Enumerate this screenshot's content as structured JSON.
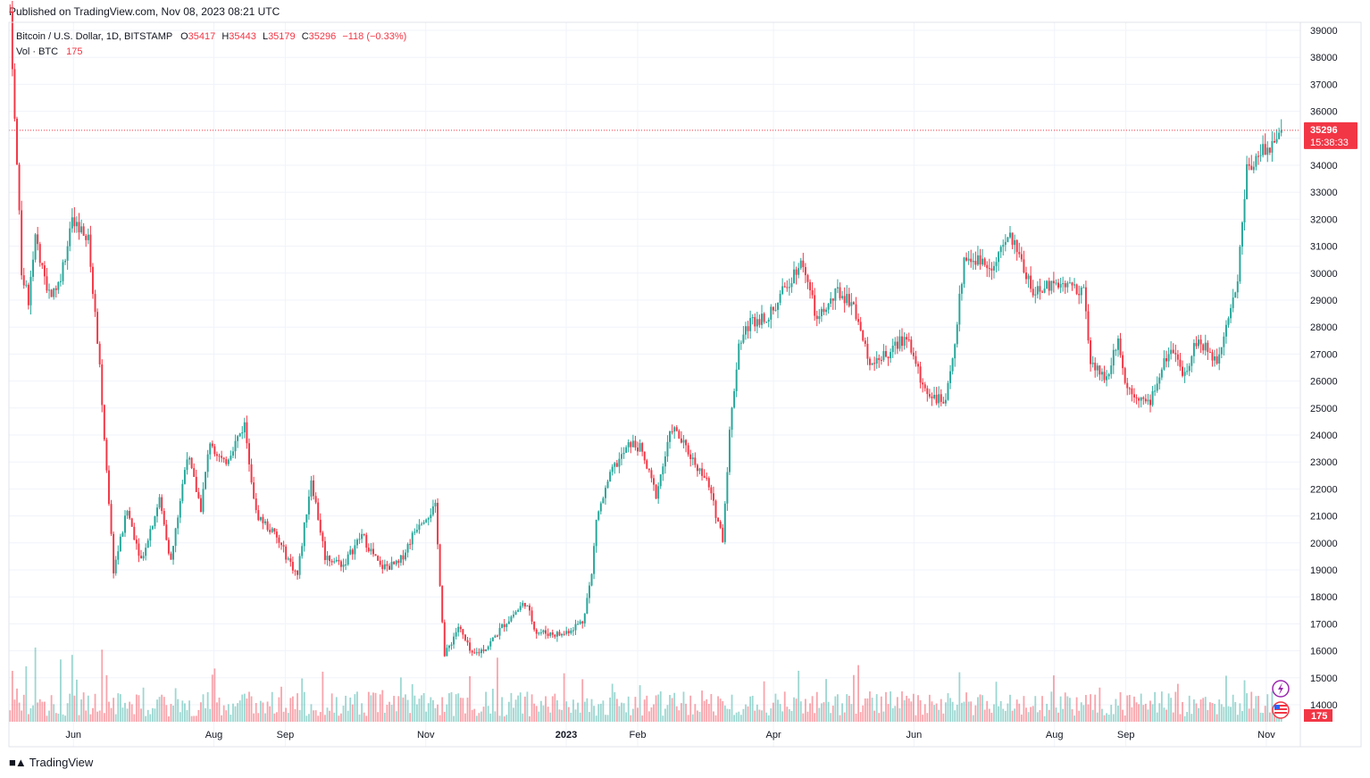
{
  "header": {
    "published": "Published on TradingView.com, Nov 08, 2023 08:21 UTC"
  },
  "legend": {
    "symbol": "Bitcoin / U.S. Dollar, 1D, BITSTAMP",
    "o_label": "O",
    "o_value": "35417",
    "h_label": "H",
    "h_value": "35443",
    "l_label": "L",
    "l_value": "35179",
    "c_label": "C",
    "c_value": "35296",
    "change": "−118 (−0.33%)",
    "vol_label": "Vol · BTC",
    "vol_value": "175"
  },
  "price_tag": {
    "price": "35296",
    "countdown": "15:38:33"
  },
  "volume_tag": "175",
  "footer": {
    "brand": "TradingView"
  },
  "colors": {
    "up": "#26a69a",
    "down": "#f23645",
    "grid": "#f0f3fa",
    "text": "#131722"
  },
  "icons": {
    "logo": "tradingview-logo-icon",
    "flash": "lightning-icon",
    "flag": "us-flag-icon"
  },
  "chart_data": {
    "type": "candlestick",
    "symbol": "BTCUSD",
    "exchange": "BITSTAMP",
    "interval": "1D",
    "ylim": [
      13000,
      39500
    ],
    "y_ticks": [
      "39000",
      "38000",
      "37000",
      "36000",
      "35000",
      "34000",
      "33000",
      "32000",
      "31000",
      "30000",
      "29000",
      "28000",
      "27000",
      "26000",
      "25000",
      "24000",
      "23000",
      "22000",
      "21000",
      "20000",
      "19000",
      "18000",
      "17000",
      "16000",
      "15000",
      "14000"
    ],
    "x_ticks": [
      {
        "label": "Jun",
        "date": "2022-06-01"
      },
      {
        "label": "Aug",
        "date": "2022-08-01"
      },
      {
        "label": "Sep",
        "date": "2022-09-01"
      },
      {
        "label": "Nov",
        "date": "2022-11-01"
      },
      {
        "label": "2023",
        "date": "2023-01-01"
      },
      {
        "label": "Feb",
        "date": "2023-02-01"
      },
      {
        "label": "Apr",
        "date": "2023-04-01"
      },
      {
        "label": "Jun",
        "date": "2023-06-01"
      },
      {
        "label": "Aug",
        "date": "2023-08-01"
      },
      {
        "label": "Sep",
        "date": "2023-09-01"
      },
      {
        "label": "Nov",
        "date": "2023-11-01"
      }
    ],
    "start_date": "2022-05-04",
    "end_date": "2023-11-08",
    "close_series": [
      {
        "date": "2022-05-04",
        "close": 39700
      },
      {
        "date": "2022-05-06",
        "close": 36000
      },
      {
        "date": "2022-05-09",
        "close": 30100
      },
      {
        "date": "2022-05-12",
        "close": 29000
      },
      {
        "date": "2022-05-15",
        "close": 31300
      },
      {
        "date": "2022-05-20",
        "close": 29200
      },
      {
        "date": "2022-05-25",
        "close": 29600
      },
      {
        "date": "2022-05-31",
        "close": 31800
      },
      {
        "date": "2022-06-07",
        "close": 31200
      },
      {
        "date": "2022-06-12",
        "close": 26600
      },
      {
        "date": "2022-06-15",
        "close": 22500
      },
      {
        "date": "2022-06-18",
        "close": 19000
      },
      {
        "date": "2022-06-24",
        "close": 21200
      },
      {
        "date": "2022-06-30",
        "close": 19400
      },
      {
        "date": "2022-07-08",
        "close": 21600
      },
      {
        "date": "2022-07-13",
        "close": 19300
      },
      {
        "date": "2022-07-20",
        "close": 23300
      },
      {
        "date": "2022-07-26",
        "close": 21300
      },
      {
        "date": "2022-07-30",
        "close": 23800
      },
      {
        "date": "2022-08-05",
        "close": 22900
      },
      {
        "date": "2022-08-14",
        "close": 24400
      },
      {
        "date": "2022-08-19",
        "close": 21100
      },
      {
        "date": "2022-08-27",
        "close": 20300
      },
      {
        "date": "2022-09-06",
        "close": 18800
      },
      {
        "date": "2022-09-12",
        "close": 22400
      },
      {
        "date": "2022-09-18",
        "close": 19500
      },
      {
        "date": "2022-09-26",
        "close": 19200
      },
      {
        "date": "2022-10-04",
        "close": 20300
      },
      {
        "date": "2022-10-12",
        "close": 19100
      },
      {
        "date": "2022-10-20",
        "close": 19200
      },
      {
        "date": "2022-10-29",
        "close": 20800
      },
      {
        "date": "2022-11-05",
        "close": 21300
      },
      {
        "date": "2022-11-09",
        "close": 15800
      },
      {
        "date": "2022-11-15",
        "close": 16900
      },
      {
        "date": "2022-11-21",
        "close": 15800
      },
      {
        "date": "2022-11-28",
        "close": 16200
      },
      {
        "date": "2022-12-05",
        "close": 17000
      },
      {
        "date": "2022-12-14",
        "close": 17800
      },
      {
        "date": "2022-12-19",
        "close": 16700
      },
      {
        "date": "2022-12-30",
        "close": 16600
      },
      {
        "date": "2023-01-08",
        "close": 17100
      },
      {
        "date": "2023-01-12",
        "close": 18800
      },
      {
        "date": "2023-01-14",
        "close": 20900
      },
      {
        "date": "2023-01-21",
        "close": 22700
      },
      {
        "date": "2023-01-29",
        "close": 23700
      },
      {
        "date": "2023-02-02",
        "close": 23500
      },
      {
        "date": "2023-02-09",
        "close": 21800
      },
      {
        "date": "2023-02-16",
        "close": 24300
      },
      {
        "date": "2023-02-25",
        "close": 23100
      },
      {
        "date": "2023-03-03",
        "close": 22300
      },
      {
        "date": "2023-03-10",
        "close": 20200
      },
      {
        "date": "2023-03-13",
        "close": 24100
      },
      {
        "date": "2023-03-17",
        "close": 27400
      },
      {
        "date": "2023-03-22",
        "close": 28200
      },
      {
        "date": "2023-03-31",
        "close": 28500
      },
      {
        "date": "2023-04-11",
        "close": 30200
      },
      {
        "date": "2023-04-14",
        "close": 30400
      },
      {
        "date": "2023-04-20",
        "close": 28200
      },
      {
        "date": "2023-04-29",
        "close": 29300
      },
      {
        "date": "2023-05-06",
        "close": 28900
      },
      {
        "date": "2023-05-12",
        "close": 26800
      },
      {
        "date": "2023-05-20",
        "close": 26900
      },
      {
        "date": "2023-05-29",
        "close": 27700
      },
      {
        "date": "2023-06-05",
        "close": 25800
      },
      {
        "date": "2023-06-15",
        "close": 25100
      },
      {
        "date": "2023-06-20",
        "close": 28200
      },
      {
        "date": "2023-06-23",
        "close": 30600
      },
      {
        "date": "2023-07-06",
        "close": 30300
      },
      {
        "date": "2023-07-13",
        "close": 31400
      },
      {
        "date": "2023-07-24",
        "close": 29200
      },
      {
        "date": "2023-08-01",
        "close": 29700
      },
      {
        "date": "2023-08-14",
        "close": 29400
      },
      {
        "date": "2023-08-17",
        "close": 26600
      },
      {
        "date": "2023-08-24",
        "close": 26100
      },
      {
        "date": "2023-08-29",
        "close": 27700
      },
      {
        "date": "2023-09-01",
        "close": 25900
      },
      {
        "date": "2023-09-11",
        "close": 25100
      },
      {
        "date": "2023-09-20",
        "close": 27100
      },
      {
        "date": "2023-09-27",
        "close": 26300
      },
      {
        "date": "2023-10-02",
        "close": 27500
      },
      {
        "date": "2023-10-11",
        "close": 26800
      },
      {
        "date": "2023-10-16",
        "close": 28500
      },
      {
        "date": "2023-10-20",
        "close": 29700
      },
      {
        "date": "2023-10-23",
        "close": 33000
      },
      {
        "date": "2023-10-24",
        "close": 33900
      },
      {
        "date": "2023-10-31",
        "close": 34600
      },
      {
        "date": "2023-11-03",
        "close": 34700
      },
      {
        "date": "2023-11-08",
        "close": 35296
      }
    ]
  }
}
